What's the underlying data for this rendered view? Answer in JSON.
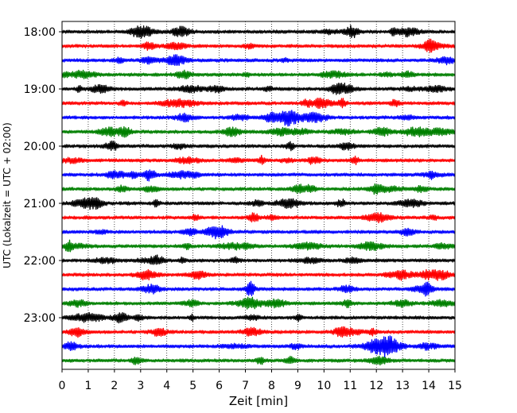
{
  "chart_data": {
    "type": "line",
    "title": "",
    "xlabel": "Zeit  [min]",
    "ylabel": "UTC (Lokalzeit = UTC + 02:00)",
    "xlim": [
      0,
      15
    ],
    "x_ticks": [
      0,
      1,
      2,
      3,
      4,
      5,
      6,
      7,
      8,
      9,
      10,
      11,
      12,
      13,
      14,
      15
    ],
    "x_grid": true,
    "grid_style": "dotted",
    "y_tick_labels": [
      "18:00",
      "19:00",
      "20:00",
      "21:00",
      "22:00",
      "23:00"
    ],
    "y_tick_trace_index": [
      0,
      4,
      8,
      12,
      16,
      20
    ],
    "trace_interval_minutes": 15,
    "trace_count": 24,
    "trace_colors": [
      "#000000",
      "#ff0000",
      "#0000ff",
      "#008000"
    ],
    "legend": "none"
  }
}
